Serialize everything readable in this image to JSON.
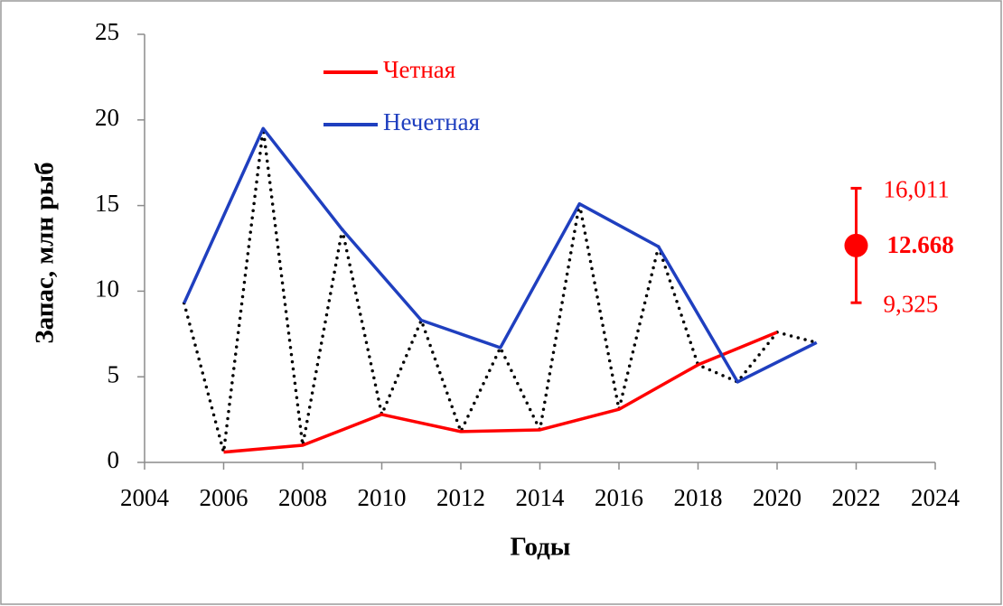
{
  "chart_data": {
    "type": "line",
    "x_label": "Годы",
    "y_label": "Запас, млн рыб",
    "xlim": [
      2004,
      2024
    ],
    "xticks": [
      2004,
      2006,
      2008,
      2010,
      2012,
      2014,
      2016,
      2018,
      2020,
      2022,
      2024
    ],
    "ylim": [
      0,
      25
    ],
    "yticks": [
      0,
      5,
      10,
      15,
      20,
      25
    ],
    "legend": "top-left",
    "series": [
      {
        "name": "Четная",
        "color": "#ff0000",
        "style": "solid",
        "x": [
          2006,
          2008,
          2010,
          2012,
          2014,
          2016,
          2018,
          2020
        ],
        "values": [
          0.6,
          1.0,
          2.8,
          1.8,
          1.9,
          3.1,
          5.7,
          7.6
        ]
      },
      {
        "name": "Нечетная",
        "color": "#1f3fbf",
        "style": "solid",
        "x": [
          2005,
          2007,
          2009,
          2011,
          2013,
          2015,
          2017,
          2019,
          2021
        ],
        "values": [
          9.3,
          19.5,
          13.6,
          8.3,
          6.7,
          15.1,
          12.6,
          4.7,
          7.0
        ]
      },
      {
        "color": "#000000",
        "style": "dotted",
        "x": [
          2005,
          2006,
          2007,
          2008,
          2009,
          2010,
          2011,
          2012,
          2013,
          2014,
          2015,
          2016,
          2017,
          2018,
          2019,
          2020,
          2021
        ],
        "values": [
          9.3,
          0.6,
          19.5,
          1.0,
          13.6,
          2.8,
          8.3,
          1.8,
          6.7,
          1.9,
          15.1,
          3.1,
          12.6,
          5.7,
          4.7,
          7.6,
          7.0
        ]
      }
    ],
    "interval": {
      "x": 2022,
      "value": 12.668,
      "upper": 16.011,
      "upper_label": "16,011",
      "lower": 9.325,
      "lower_label": "9,325",
      "color": "#ff0000"
    }
  }
}
